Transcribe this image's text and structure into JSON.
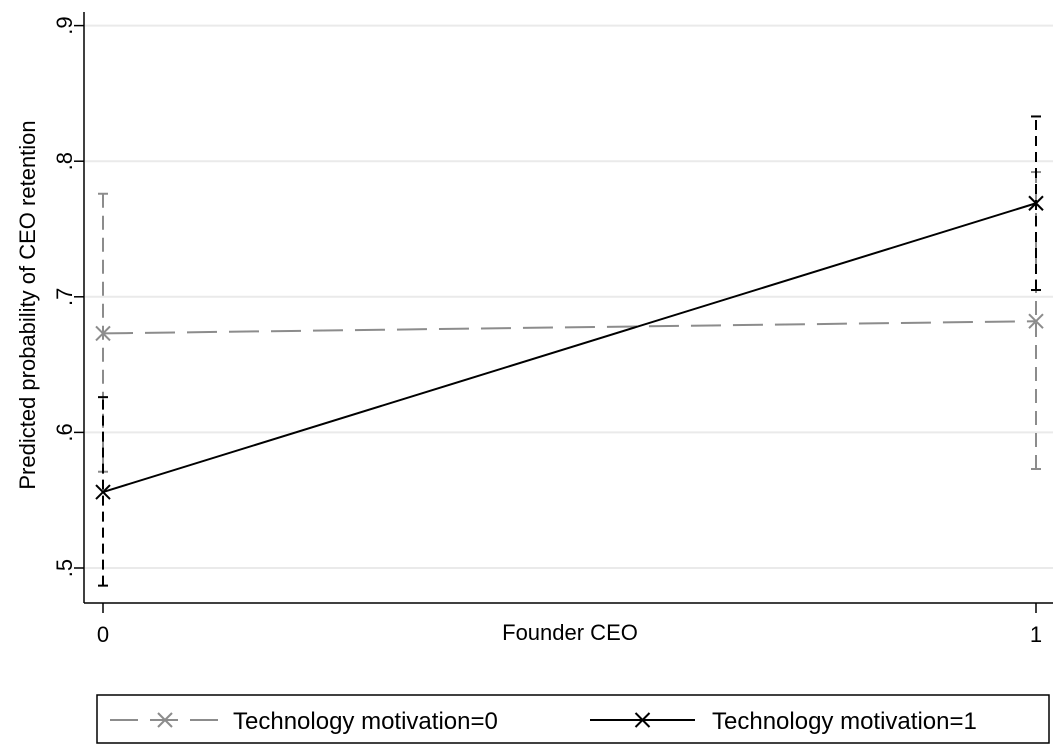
{
  "chart_data": {
    "type": "line",
    "title": "",
    "xlabel": "Founder CEO",
    "ylabel": "Predicted probability of CEO retention",
    "x": [
      0,
      1
    ],
    "x_ticks": [
      "0",
      "1"
    ],
    "y_ticks": [
      ".5",
      ".6",
      ".7",
      ".8",
      ".9"
    ],
    "y_tick_values": [
      0.5,
      0.6,
      0.7,
      0.8,
      0.9
    ],
    "ylim": [
      0.48,
      0.92
    ],
    "xlim": [
      0,
      1
    ],
    "grid": "horizontal",
    "legend_position": "bottom",
    "series": [
      {
        "name": "Technology motivation=0",
        "values": [
          0.673,
          0.682
        ],
        "ci_low": [
          0.571,
          0.573
        ],
        "ci_high": [
          0.776,
          0.792
        ],
        "color": "#8c8c8c",
        "line_style": "dashed",
        "marker": "x"
      },
      {
        "name": "Technology motivation=1",
        "values": [
          0.556,
          0.769
        ],
        "ci_low": [
          0.487,
          0.705
        ],
        "ci_high": [
          0.626,
          0.833
        ],
        "color": "#000000",
        "line_style": "solid",
        "marker": "x"
      }
    ]
  }
}
